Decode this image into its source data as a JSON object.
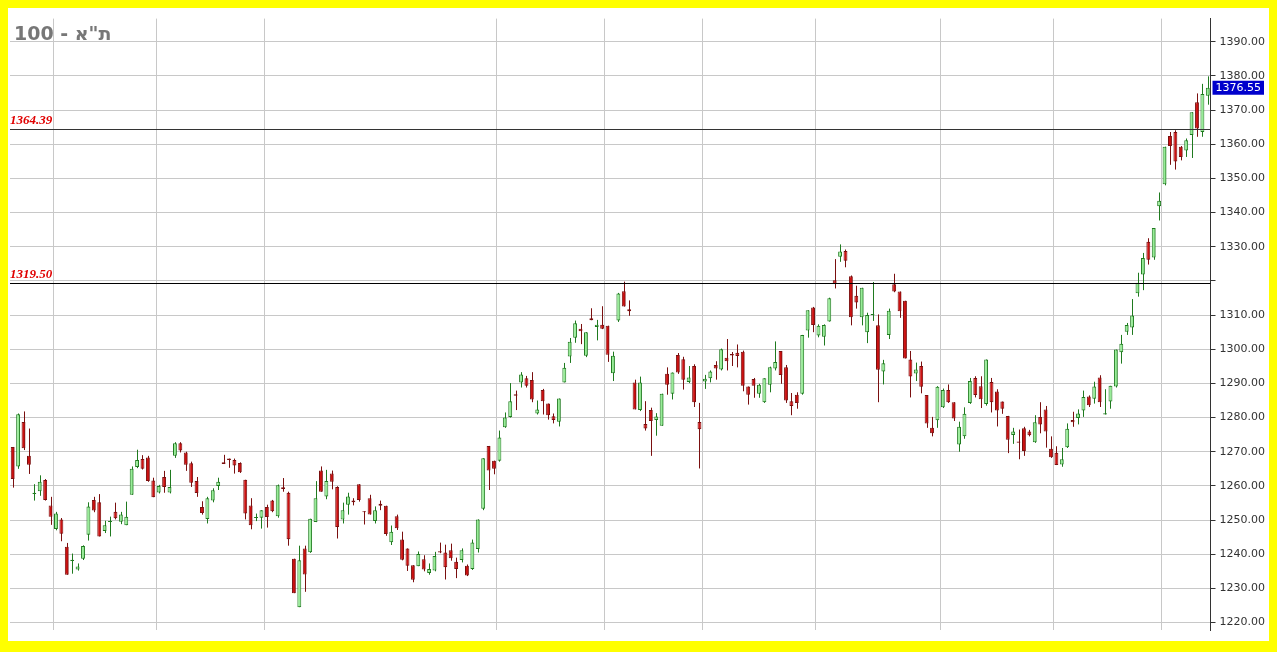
{
  "chart_data": {
    "type": "candlestick",
    "title": "ת\"א - 100",
    "categories": [
      null,
      null,
      null,
      null,
      null,
      null,
      null,
      null,
      null,
      null,
      null,
      null,
      null,
      null,
      null,
      null,
      null,
      null,
      null,
      null,
      null,
      null,
      null,
      null,
      null,
      null,
      null,
      null,
      null,
      null,
      null,
      null,
      null,
      null,
      null,
      null,
      null,
      null,
      null,
      null,
      null,
      null,
      null,
      null,
      null,
      null,
      null,
      null,
      null,
      null,
      null,
      null,
      null,
      null,
      null,
      null,
      null,
      null,
      null,
      null,
      null,
      null,
      null,
      null,
      null,
      null,
      null,
      null,
      null,
      null,
      null,
      null,
      null,
      null,
      null,
      null,
      null,
      null,
      null,
      null,
      null,
      null,
      null,
      null,
      null,
      null,
      null,
      null,
      null,
      null,
      null,
      null,
      null,
      null,
      null,
      null,
      null,
      null,
      null,
      null,
      null,
      null,
      null,
      null,
      null,
      null,
      null,
      null,
      null,
      null,
      null,
      null,
      null,
      null,
      null,
      null,
      null,
      null,
      null,
      null,
      null,
      null,
      null,
      null,
      null,
      null,
      null,
      null,
      null,
      null,
      null,
      null,
      null,
      null,
      null,
      null,
      null,
      null,
      null,
      null,
      null,
      null,
      null,
      null,
      null,
      null,
      null,
      null,
      null,
      null,
      null,
      null,
      null,
      null,
      null,
      null,
      null,
      null,
      null,
      null,
      null,
      null,
      null,
      null,
      null,
      null,
      null,
      null,
      null,
      null,
      null,
      null,
      null,
      null,
      null,
      null,
      null,
      null,
      null,
      null,
      null,
      null,
      null,
      null,
      null,
      null,
      null,
      null,
      null,
      null,
      null,
      null,
      null,
      null,
      null,
      null,
      null,
      null,
      null,
      null,
      null,
      null,
      null,
      null,
      null,
      null,
      null,
      null,
      null,
      null,
      null,
      null,
      null,
      null,
      null,
      null,
      null,
      null,
      null,
      null,
      null,
      null
    ],
    "ohlc": [
      [
        1271.4,
        1271.4,
        1259.5,
        1262
      ],
      [
        1265.7,
        1281.2,
        1265,
        1281
      ],
      [
        1278.7,
        1281.8,
        1270.5,
        1271
      ],
      [
        1268.8,
        1276.8,
        1263.5,
        1266.2
      ],
      [
        1257.6,
        1260.5,
        1255.7,
        1258
      ],
      [
        1258.4,
        1263.1,
        1257.1,
        1261.2
      ],
      [
        1261.7,
        1262,
        1255.7,
        1255.9
      ],
      [
        1254.3,
        1256.8,
        1248.6,
        1251
      ],
      [
        1247.4,
        1252.4,
        1247,
        1251.9
      ],
      [
        1250.2,
        1250.6,
        1243.8,
        1246
      ],
      [
        1242.2,
        1243.3,
        1234,
        1234
      ],
      [
        1238,
        1240.2,
        1234.3,
        1238.4
      ],
      [
        1235.5,
        1237.3,
        1235.2,
        1236.4
      ],
      [
        1238.7,
        1242.6,
        1238.3,
        1242.4
      ],
      [
        1245.7,
        1255.2,
        1244,
        1254
      ],
      [
        1255.9,
        1256.8,
        1252.3,
        1252.8
      ],
      [
        1255.2,
        1257.6,
        1245.2,
        1245.2
      ],
      [
        1246.8,
        1249.8,
        1246.2,
        1248.5
      ],
      [
        1249.4,
        1251,
        1245.2,
        1249.7
      ],
      [
        1252.4,
        1255.1,
        1250.2,
        1250.5
      ],
      [
        1249.5,
        1252.4,
        1248.8,
        1251.6
      ],
      [
        1248.5,
        1255.4,
        1248.5,
        1251
      ],
      [
        1257.4,
        1265.7,
        1257.4,
        1265
      ],
      [
        1265.5,
        1270.6,
        1265.2,
        1267.6
      ],
      [
        1267.9,
        1269,
        1264.8,
        1265
      ],
      [
        1268.3,
        1268.8,
        1261.2,
        1261.4
      ],
      [
        1261.6,
        1262.4,
        1256.7,
        1256.7
      ],
      [
        1258.1,
        1260.3,
        1257.8,
        1260
      ],
      [
        1262.6,
        1264.4,
        1258,
        1259.7
      ],
      [
        1258.1,
        1264.7,
        1257.8,
        1259.7
      ],
      [
        1268.8,
        1272.8,
        1268.2,
        1272.5
      ],
      [
        1272.5,
        1272.8,
        1269.8,
        1270.4
      ],
      [
        1269.8,
        1270,
        1264.4,
        1266.2
      ],
      [
        1266.6,
        1267.1,
        1259.7,
        1260.9
      ],
      [
        1261.4,
        1262.6,
        1256.8,
        1257.9
      ],
      [
        1253.8,
        1255.5,
        1251.6,
        1252.1
      ],
      [
        1250.3,
        1256.8,
        1249,
        1256.4
      ],
      [
        1255.7,
        1259.3,
        1255.2,
        1258.7
      ],
      [
        1260,
        1262.4,
        1258.8,
        1261.2
      ],
      [
        1266.9,
        1269.1,
        1266.4,
        1266.4
      ],
      [
        1268,
        1268,
        1265.3,
        1267.6
      ],
      [
        1267.6,
        1268,
        1263.6,
        1266
      ],
      [
        1266.7,
        1266.9,
        1263.8,
        1264
      ],
      [
        1261.8,
        1261.8,
        1250.2,
        1251.9
      ],
      [
        1254.3,
        1256.4,
        1247.3,
        1248.5
      ],
      [
        1250.6,
        1251.9,
        1249.7,
        1250.9
      ],
      [
        1250.7,
        1252.9,
        1247.5,
        1252.9
      ],
      [
        1253.8,
        1254.5,
        1247.8,
        1250.9
      ],
      [
        1255.7,
        1255.9,
        1252.3,
        1252.6
      ],
      [
        1251.1,
        1260.4,
        1250.7,
        1260.2
      ],
      [
        1259.6,
        1262.3,
        1258.3,
        1259.1
      ],
      [
        1258,
        1258.3,
        1242.5,
        1244.4
      ],
      [
        1238.7,
        1238.7,
        1228.6,
        1228.6
      ],
      [
        1224.5,
        1242.5,
        1224.5,
        1238.2
      ],
      [
        1241.7,
        1242.5,
        1229,
        1234.1
      ],
      [
        1240.6,
        1250.4,
        1240.4,
        1250.4
      ],
      [
        1249.4,
        1261.4,
        1249.4,
        1256.4
      ],
      [
        1264.5,
        1265.7,
        1258.3,
        1258.3
      ],
      [
        1256.9,
        1264.7,
        1256.1,
        1261.4
      ],
      [
        1263.6,
        1264.5,
        1259,
        1261.2
      ],
      [
        1259.7,
        1259.9,
        1244.6,
        1248
      ],
      [
        1250.2,
        1255.1,
        1249,
        1252.9
      ],
      [
        1254.5,
        1258,
        1251.6,
        1256.9
      ],
      [
        1255.7,
        1256.4,
        1254.3,
        1255.2
      ],
      [
        1260.5,
        1260.5,
        1255.4,
        1255.9
      ],
      [
        1252.6,
        1252.6,
        1248.7,
        1252.3
      ],
      [
        1256.4,
        1257.4,
        1251.6,
        1251.6
      ],
      [
        1249.7,
        1254,
        1249,
        1252.9
      ],
      [
        1254.8,
        1255.7,
        1252.9,
        1254.2
      ],
      [
        1254.2,
        1254.2,
        1245.4,
        1245.9
      ],
      [
        1243.5,
        1248.4,
        1242.7,
        1246.6
      ],
      [
        1251.1,
        1251.6,
        1247.1,
        1247.6
      ],
      [
        1244.3,
        1246.6,
        1238.2,
        1238.4
      ],
      [
        1241.7,
        1241.7,
        1235.1,
        1236.6
      ],
      [
        1236.8,
        1236.8,
        1231.8,
        1232.5
      ],
      [
        1236.5,
        1240.8,
        1236.5,
        1240.1
      ],
      [
        1238.5,
        1239.7,
        1235,
        1235.5
      ],
      [
        1234.5,
        1237.3,
        1234,
        1235.7
      ],
      [
        1235.2,
        1240.7,
        1235,
        1239.5
      ],
      [
        1240.9,
        1243.4,
        1240.3,
        1240.5
      ],
      [
        1240.5,
        1242.8,
        1232.6,
        1236.2
      ],
      [
        1241.2,
        1243.1,
        1238.1,
        1238.8
      ],
      [
        1237.8,
        1239,
        1233,
        1235.7
      ],
      [
        1238.3,
        1241.7,
        1237.6,
        1241.2
      ],
      [
        1236.6,
        1237,
        1233.6,
        1233.8
      ],
      [
        1235.7,
        1244.3,
        1235.4,
        1243.4
      ],
      [
        1241.5,
        1250.2,
        1240.5,
        1250.2
      ],
      [
        1253.3,
        1268.1,
        1252.9,
        1268.1
      ],
      [
        1271.7,
        1271.7,
        1258.8,
        1264.5
      ],
      [
        1267.4,
        1267.4,
        1263.4,
        1265
      ],
      [
        1267.4,
        1276.2,
        1267.1,
        1274.2
      ],
      [
        1277.2,
        1281.5,
        1277,
        1280
      ],
      [
        1280.2,
        1290.1,
        1280,
        1284.8
      ],
      [
        1286.8,
        1287.9,
        1282.2,
        1286.4
      ],
      [
        1290.3,
        1293.3,
        1288.8,
        1292.6
      ],
      [
        1291.5,
        1292.2,
        1288.8,
        1289.3
      ],
      [
        1291,
        1293.3,
        1284.5,
        1285.3
      ],
      [
        1281.2,
        1285,
        1280.9,
        1282.4
      ],
      [
        1288.1,
        1288.4,
        1280.9,
        1284.8
      ],
      [
        1284.1,
        1284.1,
        1279.4,
        1280.7
      ],
      [
        1280.4,
        1281.2,
        1278.3,
        1279.3
      ],
      [
        1278.8,
        1285.6,
        1277.4,
        1285.6
      ],
      [
        1290.3,
        1296,
        1290.3,
        1294.6
      ],
      [
        1297.9,
        1303.3,
        1296,
        1302.2
      ],
      [
        1303.4,
        1308.4,
        1301.9,
        1307.6
      ],
      [
        1306,
        1307.4,
        1301.5,
        1305.3
      ],
      [
        1298.1,
        1305,
        1297.7,
        1305
      ],
      [
        1309.1,
        1312,
        1308.5,
        1308.5
      ],
      [
        1306.5,
        1308.6,
        1302.6,
        1307.2
      ],
      [
        1307.2,
        1312.6,
        1305.9,
        1306
      ],
      [
        1306.9,
        1306.9,
        1296.3,
        1298.4
      ],
      [
        1293,
        1299.3,
        1290.7,
        1298.1
      ],
      [
        1308.4,
        1316.5,
        1308,
        1316.3
      ],
      [
        1317,
        1319.8,
        1312.5,
        1312.5
      ],
      [
        1311.7,
        1314.3,
        1309.8,
        1311.1
      ],
      [
        1290.3,
        1291.1,
        1282.4,
        1282.4
      ],
      [
        1282.2,
        1292,
        1281.9,
        1290.3
      ],
      [
        1278.1,
        1284.8,
        1276.2,
        1276.8
      ],
      [
        1282.2,
        1282.9,
        1268.8,
        1279
      ],
      [
        1279.3,
        1281.3,
        1274.7,
        1280.3
      ],
      [
        1277.6,
        1287,
        1277.6,
        1287
      ],
      [
        1292.8,
        1294.7,
        1286.7,
        1289.6
      ],
      [
        1287,
        1293.2,
        1285.3,
        1293.2
      ],
      [
        1298.3,
        1298.9,
        1292.8,
        1293.2
      ],
      [
        1297.1,
        1297.8,
        1288.2,
        1291.1
      ],
      [
        1290.4,
        1295.1,
        1290.1,
        1291.7
      ],
      [
        1295.1,
        1295.6,
        1283.1,
        1284.5
      ],
      [
        1278.7,
        1284.3,
        1265.1,
        1276.6
      ],
      [
        1290.6,
        1292.5,
        1288.4,
        1291.4
      ],
      [
        1291.5,
        1293.8,
        1290.3,
        1293.5
      ],
      [
        1295.4,
        1296.5,
        1291.1,
        1294.4
      ],
      [
        1294.1,
        1300.2,
        1293.8,
        1300
      ],
      [
        1297.5,
        1303,
        1293.8,
        1296.5
      ],
      [
        1298.6,
        1299.2,
        1295.1,
        1298.2
      ],
      [
        1299,
        1301.4,
        1294.7,
        1298
      ],
      [
        1299.3,
        1299.6,
        1287.7,
        1289.3
      ],
      [
        1289.1,
        1289.1,
        1283.8,
        1286.7
      ],
      [
        1291.3,
        1291.6,
        1285.8,
        1289.3
      ],
      [
        1287,
        1289.9,
        1285.8,
        1289.6
      ],
      [
        1284.5,
        1291.5,
        1284.3,
        1291.5
      ],
      [
        1289.6,
        1294.9,
        1287.4,
        1294.7
      ],
      [
        1294.4,
        1302.3,
        1293.8,
        1296.3
      ],
      [
        1299.5,
        1299.5,
        1289.9,
        1292.5
      ],
      [
        1294.7,
        1295.4,
        1284.3,
        1285
      ],
      [
        1284.8,
        1287.2,
        1280.7,
        1283.4
      ],
      [
        1286.7,
        1287.4,
        1282.6,
        1284.3
      ],
      [
        1287,
        1304.2,
        1286.7,
        1304.2
      ],
      [
        1305.5,
        1311.4,
        1303.4,
        1311.4
      ],
      [
        1312.2,
        1312.4,
        1305,
        1307.1
      ],
      [
        1304,
        1307.3,
        1303.5,
        1306.9
      ],
      [
        1303.7,
        1307.3,
        1301.1,
        1307.1
      ],
      [
        1308.1,
        1315.1,
        1308.1,
        1314.9
      ],
      [
        1320.2,
        1326.4,
        1317.8,
        1319.2
      ],
      [
        1327.1,
        1330.7,
        1325.6,
        1328.6
      ],
      [
        1328.8,
        1329.2,
        1324,
        1325.9
      ],
      [
        1321.4,
        1321.6,
        1307,
        1309.4
      ],
      [
        1315.7,
        1318.6,
        1311.9,
        1313.7
      ],
      [
        1309.4,
        1318,
        1307,
        1318
      ],
      [
        1305,
        1310.7,
        1301.8,
        1310
      ],
      [
        1310,
        1319.7,
        1308.3,
        1310.2
      ],
      [
        1307,
        1310.2,
        1284.5,
        1294
      ],
      [
        1293.5,
        1296.9,
        1289.7,
        1295.9
      ],
      [
        1304.2,
        1311.9,
        1303,
        1311.3
      ],
      [
        1319,
        1322.1,
        1316.7,
        1316.9
      ],
      [
        1316.9,
        1316.9,
        1309.2,
        1311.1
      ],
      [
        1314.2,
        1314.2,
        1297.3,
        1297.3
      ],
      [
        1297,
        1299.5,
        1285.9,
        1292
      ],
      [
        1292.9,
        1296.1,
        1290.7,
        1294.1
      ],
      [
        1295.1,
        1296.4,
        1287.1,
        1289
      ],
      [
        1286.6,
        1286.6,
        1277,
        1278.3
      ],
      [
        1277,
        1280.2,
        1274.5,
        1275.4
      ],
      [
        1279.2,
        1289.2,
        1277,
        1289
      ],
      [
        1283,
        1288.5,
        1282.8,
        1288.1
      ],
      [
        1288.1,
        1289.7,
        1284.3,
        1284.5
      ],
      [
        1284.5,
        1284.5,
        1279,
        1279.7
      ],
      [
        1272.1,
        1278.8,
        1270,
        1277.3
      ],
      [
        1274.5,
        1283,
        1273.8,
        1281.1
      ],
      [
        1284.3,
        1291.6,
        1284,
        1290.7
      ],
      [
        1291.6,
        1292.1,
        1285.9,
        1286.6
      ],
      [
        1289.2,
        1292.1,
        1282.8,
        1285.4
      ],
      [
        1284,
        1297,
        1283.5,
        1297
      ],
      [
        1290.4,
        1291.6,
        1281.5,
        1284.5
      ],
      [
        1287.6,
        1288.3,
        1277.4,
        1282.1
      ],
      [
        1284.7,
        1284.7,
        1281.1,
        1282.6
      ],
      [
        1280.5,
        1280.5,
        1269.6,
        1273.5
      ],
      [
        1274.9,
        1277,
        1272.3,
        1275.9
      ],
      [
        1273,
        1276.5,
        1267.8,
        1272.6
      ],
      [
        1276.9,
        1277.3,
        1268.8,
        1270.2
      ],
      [
        1275.9,
        1276.4,
        1274.5,
        1274.8
      ],
      [
        1272.8,
        1280.7,
        1272.6,
        1278.6
      ],
      [
        1280.2,
        1284.5,
        1275.4,
        1278
      ],
      [
        1282.4,
        1283.4,
        1271.2,
        1275.9
      ],
      [
        1270.9,
        1274.5,
        1268.2,
        1268.4
      ],
      [
        1269.7,
        1271.6,
        1266.1,
        1266.1
      ],
      [
        1266.3,
        1271.1,
        1265.6,
        1267.8
      ],
      [
        1271.3,
        1278.3,
        1271.1,
        1276.7
      ],
      [
        1279.3,
        1281.7,
        1277.3,
        1278.6
      ],
      [
        1279.9,
        1282.4,
        1278,
        1281.2
      ],
      [
        1282.1,
        1287.9,
        1280.2,
        1286
      ],
      [
        1286.2,
        1286.5,
        1283.1,
        1283.6
      ],
      [
        1285.5,
        1290.5,
        1284.1,
        1289.1
      ],
      [
        1291.7,
        1292.4,
        1283.1,
        1284.5
      ],
      [
        1280.9,
        1288.3,
        1280.9,
        1281.3
      ],
      [
        1284.7,
        1289.3,
        1282.6,
        1289.3
      ],
      [
        1289.1,
        1299.9,
        1288.8,
        1299.9
      ],
      [
        1299.1,
        1304.2,
        1295.8,
        1301.6
      ],
      [
        1305.1,
        1307.7,
        1304.2,
        1307.1
      ],
      [
        1306.4,
        1314.7,
        1304.2,
        1309.9
      ],
      [
        1316.4,
        1322.4,
        1315.4,
        1319.5
      ],
      [
        1321.9,
        1328.2,
        1317.3,
        1326.7
      ],
      [
        1331.5,
        1332.5,
        1324.8,
        1326.2
      ],
      [
        1326.9,
        1335.5,
        1326.2,
        1335.5
      ],
      [
        1341.9,
        1345.9,
        1337.7,
        1343.5
      ],
      [
        1348.3,
        1359.3,
        1348,
        1359.3
      ],
      [
        1362.4,
        1363.6,
        1354,
        1359.5
      ],
      [
        1363.6,
        1364.1,
        1352.6,
        1355
      ],
      [
        1359.3,
        1359.5,
        1355.3,
        1356.3
      ],
      [
        1358.2,
        1361.7,
        1356.3,
        1361.2
      ],
      [
        1362.7,
        1369.4,
        1356,
        1369.4
      ],
      [
        1372.3,
        1374.9,
        1362.2,
        1364.6
      ],
      [
        1363.6,
        1377.7,
        1362.2,
        1374.7
      ],
      [
        1374.2,
        1379.9,
        1371.6,
        1376.55
      ]
    ],
    "ylim": [
      1217.7,
      1396.8
    ],
    "yticks": [
      {
        "value": 1220,
        "label": "1220.00"
      },
      {
        "value": 1230,
        "label": "1230.00"
      },
      {
        "value": 1240,
        "label": "1240.00"
      },
      {
        "value": 1250,
        "label": "1250.00"
      },
      {
        "value": 1260,
        "label": "1260.00"
      },
      {
        "value": 1270,
        "label": "1270.00"
      },
      {
        "value": 1280,
        "label": "1280.00"
      },
      {
        "value": 1290,
        "label": "1290.00"
      },
      {
        "value": 1300,
        "label": "1300.00"
      },
      {
        "value": 1310,
        "label": "1310.00"
      },
      {
        "value": 1320,
        "label": null
      },
      {
        "value": 1330,
        "label": "1330.00"
      },
      {
        "value": 1340,
        "label": "1340.00"
      },
      {
        "value": 1350,
        "label": "1350.00"
      },
      {
        "value": 1360,
        "label": "1360.00"
      },
      {
        "value": 1370,
        "label": "1370.00"
      },
      {
        "value": 1380,
        "label": "1380.00"
      },
      {
        "value": 1390,
        "label": "1390.00"
      }
    ],
    "ref_lines": [
      {
        "axis": "y",
        "value": 1364.39,
        "label": "1364.39",
        "color": "#333333"
      },
      {
        "axis": "y",
        "value": 1319.5,
        "label": "1319.50",
        "color": "#000000"
      }
    ],
    "annotations": [
      "1376.55"
    ],
    "grid": true,
    "legend": false,
    "tick_labels": "y"
  }
}
